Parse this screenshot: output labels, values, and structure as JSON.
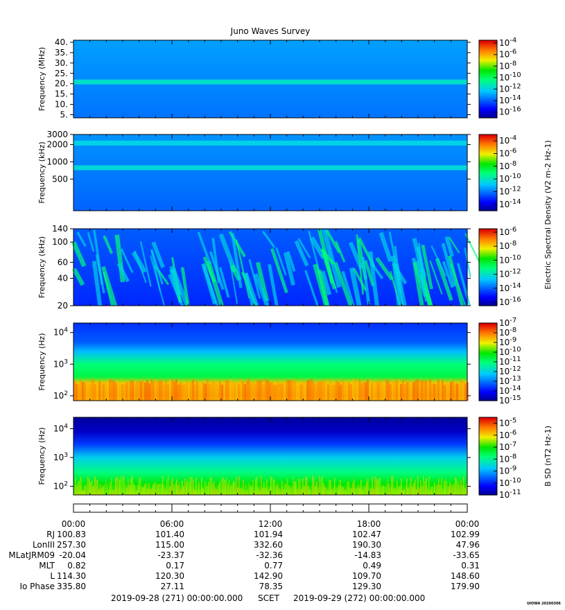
{
  "title": "Juno Waves Survey",
  "chart_data": [
    {
      "type": "heatmap",
      "ylabel": "Frequency (MHz)",
      "y_scale": "linear",
      "ylim": [
        3.5,
        41
      ],
      "yticks": [
        "40.",
        "35.",
        "30.",
        "25.",
        "20.",
        "15.",
        "10.",
        "5."
      ],
      "ytick_values": [
        40,
        35,
        30,
        25,
        20,
        15,
        10,
        5
      ],
      "colorbar": {
        "ticks": [
          "10-4",
          "10-6",
          "10-8",
          "10-10",
          "10-12",
          "10-14",
          "10-16"
        ],
        "exponents": [
          -4,
          -6,
          -8,
          -10,
          -12,
          -14,
          -16
        ],
        "range": [
          -17,
          -3.5
        ]
      },
      "background_level": -13.2,
      "bands": [
        {
          "center": 21,
          "level": -11.5
        }
      ]
    },
    {
      "type": "heatmap",
      "ylabel": "Frequency (kHz)",
      "y_scale": "log",
      "ylim": [
        140,
        3000
      ],
      "yticks": [
        "3000",
        "2000",
        "1000",
        "500"
      ],
      "ytick_values": [
        3000,
        2000,
        1000,
        500
      ],
      "colorbar": {
        "ticks": [
          "10-4",
          "10-6",
          "10-8",
          "10-10",
          "10-12",
          "10-14"
        ],
        "exponents": [
          -4,
          -6,
          -8,
          -10,
          -12,
          -14
        ],
        "range": [
          -15,
          -3
        ]
      },
      "background_level": -11.8,
      "bands": [
        {
          "center": 2150,
          "level": -10.5
        },
        {
          "center": 800,
          "level": -10.3
        }
      ]
    },
    {
      "type": "heatmap",
      "ylabel": "Frequency (kHz)",
      "y_scale": "log",
      "ylim": [
        20,
        140
      ],
      "yticks": [
        "140",
        "100",
        "60",
        "40",
        "20"
      ],
      "ytick_values": [
        140,
        100,
        60,
        40,
        20
      ],
      "colorbar": {
        "ticks": [
          "10-6",
          "10-8",
          "10-10",
          "10-12",
          "10-14",
          "10-16"
        ],
        "exponents": [
          -6,
          -8,
          -10,
          -12,
          -14,
          -16
        ],
        "range": [
          -16.5,
          -5.5
        ]
      },
      "background_level": -14.3,
      "note": "quasi-periodic broadband bursts throughout the day"
    },
    {
      "type": "heatmap",
      "ylabel": "Frequency (Hz)",
      "y_scale": "log",
      "ylim": [
        70,
        20000
      ],
      "yticks": [
        "104",
        "103",
        "102"
      ],
      "ytick_exponents": [
        4,
        3,
        2
      ],
      "colorbar": {
        "ticks": [
          "10-7",
          "10-8",
          "10-9",
          "10-10",
          "10-11",
          "10-12",
          "10-13",
          "10-14",
          "10-15"
        ],
        "exponents": [
          -7,
          -8,
          -9,
          -10,
          -11,
          -12,
          -13,
          -14,
          -15
        ],
        "range": [
          -15,
          -7
        ]
      },
      "profile": [
        {
          "freq_hz": 20000,
          "level": -13.6
        },
        {
          "freq_hz": 5000,
          "level": -13.2
        },
        {
          "freq_hz": 2500,
          "level": -12.3
        },
        {
          "freq_hz": 1000,
          "level": -11.0
        },
        {
          "freq_hz": 400,
          "level": -10.6
        },
        {
          "freq_hz": 250,
          "level": -8.6
        },
        {
          "freq_hz": 100,
          "level": -8.3
        },
        {
          "freq_hz": 70,
          "level": -8.5
        }
      ]
    },
    {
      "type": "heatmap",
      "ylabel": "Frequency (Hz)",
      "y_scale": "log",
      "ylim": [
        50,
        25000
      ],
      "yticks": [
        "104",
        "103",
        "102"
      ],
      "ytick_exponents": [
        4,
        3,
        2
      ],
      "colorbar": {
        "label": "B SD (nT2 Hz-1)",
        "ticks": [
          "10-5",
          "10-6",
          "10-7",
          "10-8",
          "10-9",
          "10-10",
          "10-11"
        ],
        "exponents": [
          -5,
          -6,
          -7,
          -8,
          -9,
          -10,
          -11
        ],
        "range": [
          -11,
          -4.5
        ]
      },
      "profile": [
        {
          "freq_hz": 25000,
          "level": -10.9
        },
        {
          "freq_hz": 8000,
          "level": -10.6
        },
        {
          "freq_hz": 3000,
          "level": -9.8
        },
        {
          "freq_hz": 1000,
          "level": -8.6
        },
        {
          "freq_hz": 300,
          "level": -7.8
        },
        {
          "freq_hz": 120,
          "level": -7.0
        },
        {
          "freq_hz": 50,
          "level": -6.6
        }
      ]
    }
  ],
  "shared_colorbar_label": "Electric Spectral Density (V2 m-2 Hz-1)",
  "time_axis": {
    "ticks": [
      "00:00",
      "06:00",
      "12:00",
      "18:00",
      "00:00"
    ],
    "hours": [
      0,
      6,
      12,
      18,
      24
    ]
  },
  "ephemeris": [
    {
      "label": "RJ",
      "values": [
        "100.83",
        "101.40",
        "101.94",
        "102.47",
        "102.99"
      ]
    },
    {
      "label": "LonIII",
      "values": [
        "257.30",
        "115.00",
        "332.60",
        "190.30",
        "47.96"
      ]
    },
    {
      "label": "MLatJRM09",
      "values": [
        "-20.04",
        "-23.37",
        "-32.36",
        "-14.83",
        "-33.65"
      ]
    },
    {
      "label": "MLT",
      "values": [
        "0.82",
        "0.17",
        "0.77",
        "0.49",
        "0.31"
      ]
    },
    {
      "label": "L",
      "values": [
        "114.30",
        "120.30",
        "142.90",
        "109.70",
        "148.60"
      ]
    },
    {
      "label": "Io Phase",
      "values": [
        "335.80",
        "27.11",
        "78.35",
        "129.30",
        "179.90"
      ]
    }
  ],
  "footer": {
    "start": "2019-09-28 (271) 00:00:00.000",
    "scet": "SCET",
    "end": "2019-09-29 (272) 00:00:00.000",
    "credit": "UIOWA 20200306"
  }
}
